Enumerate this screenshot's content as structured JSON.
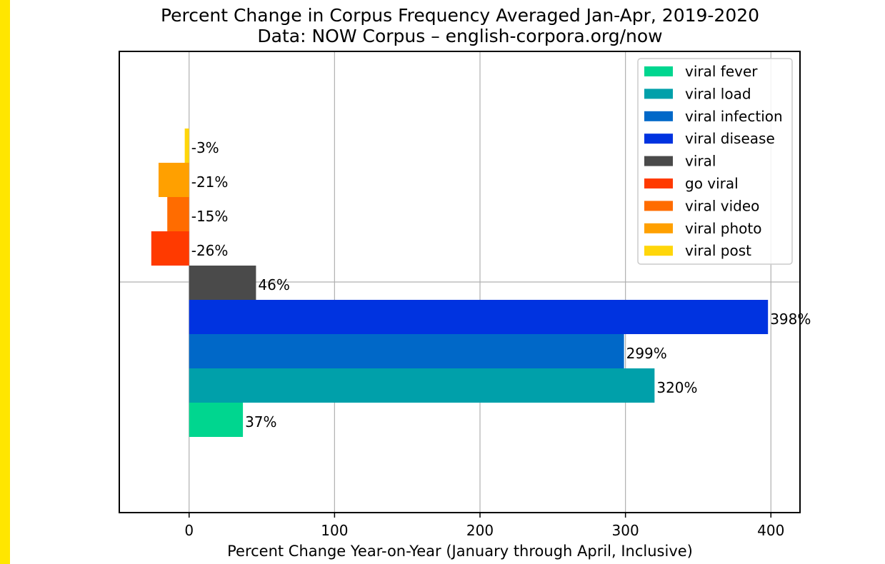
{
  "page": {
    "accent_band_color": "#FFE600"
  },
  "chart_data": {
    "type": "bar",
    "orientation": "horizontal",
    "title": "Percent Change in Corpus Frequency Averaged Jan-Apr, 2019-2020",
    "subtitle": "Data: NOW Corpus – english-corpora.org/now",
    "xlabel": "Percent Change Year-on-Year (January through April, Inclusive)",
    "ylabel": "",
    "xlim": [
      -48,
      420
    ],
    "xticks": [
      0,
      100,
      200,
      300,
      400
    ],
    "xtick_labels": [
      "0",
      "100",
      "200",
      "300",
      "400"
    ],
    "grid": true,
    "legend_position": "top-right",
    "series": [
      {
        "name": "viral fever",
        "value": 37,
        "label": "37%",
        "color": "#00D68F"
      },
      {
        "name": "viral load",
        "value": 320,
        "label": "320%",
        "color": "#00A0AA"
      },
      {
        "name": "viral infection",
        "value": 299,
        "label": "299%",
        "color": "#0068C8"
      },
      {
        "name": "viral disease",
        "value": 398,
        "label": "398%",
        "color": "#0033E0"
      },
      {
        "name": "viral",
        "value": 46,
        "label": "46%",
        "color": "#4A4A4A"
      },
      {
        "name": "go viral",
        "value": -26,
        "label": "-26%",
        "color": "#FF3A00"
      },
      {
        "name": "viral video",
        "value": -15,
        "label": "-15%",
        "color": "#FF6C00"
      },
      {
        "name": "viral photo",
        "value": -21,
        "label": "-21%",
        "color": "#FFA000"
      },
      {
        "name": "viral post",
        "value": -3,
        "label": "-3%",
        "color": "#FFD60A"
      }
    ]
  }
}
